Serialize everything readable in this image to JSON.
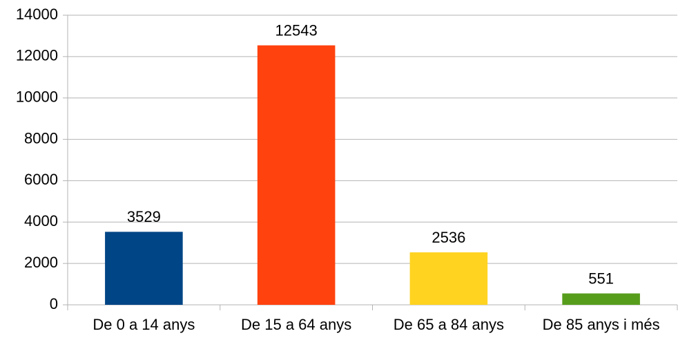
{
  "chart_data": {
    "type": "bar",
    "categories": [
      "De 0 a 14 anys",
      "De 15 a 64 anys",
      "De 65 a 84 anys",
      "De 85 anys i més"
    ],
    "values": [
      3529,
      12543,
      2536,
      551
    ],
    "colors": [
      "#004586",
      "#ff420e",
      "#ffd320",
      "#579d1c"
    ],
    "ylim": [
      0,
      14000
    ],
    "yticks": [
      0,
      2000,
      4000,
      6000,
      8000,
      10000,
      12000,
      14000
    ],
    "grid": true
  }
}
